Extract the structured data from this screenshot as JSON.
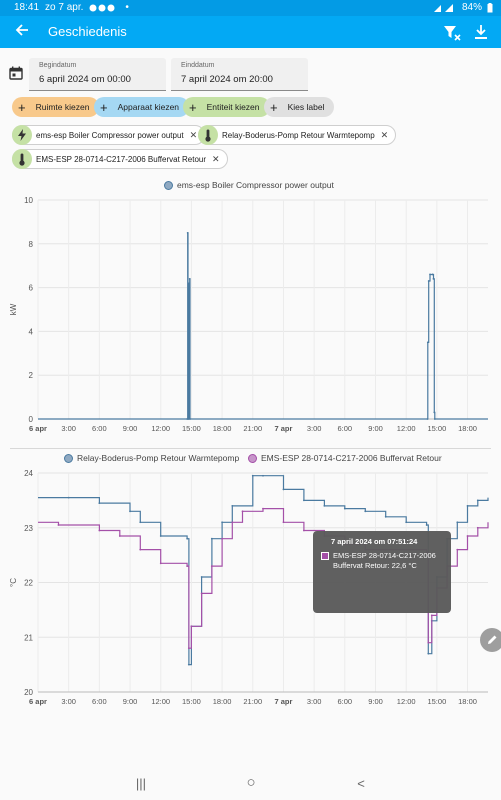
{
  "status_bar": {
    "time": "18:41",
    "date": "zo 7 apr.",
    "dot": "•",
    "battery": "84%"
  },
  "app_bar": {
    "title": "Geschiedenis",
    "icons": [
      "back-arrow-icon",
      "filter-remove-icon",
      "download-icon"
    ]
  },
  "date_range": {
    "start": {
      "label": "Begindatum",
      "value": "6 april 2024 om 00:00"
    },
    "end": {
      "label": "Einddatum",
      "value": "7 april 2024 om 20:00"
    }
  },
  "target_chips": [
    {
      "label": "Ruimte kiezen",
      "color": "#f8c98b"
    },
    {
      "label": "Apparaat kiezen",
      "color": "#a5d8f3"
    },
    {
      "label": "Entiteit kiezen",
      "color": "#c5e1a5"
    },
    {
      "label": "Kies label",
      "color": "#e0e0e0"
    }
  ],
  "entities": [
    {
      "label": "ems-esp Boiler Compressor power output",
      "icon": "lightning-bolt-icon"
    },
    {
      "label": "Relay-Boderus-Pomp Retour Warmtepomp",
      "icon": "thermometer-icon"
    },
    {
      "label": "EMS-ESP 28-0714-C217-2006 Buffervat Retour",
      "icon": "thermometer-icon"
    }
  ],
  "chart_data": [
    {
      "type": "line",
      "series": [
        {
          "name": "ems-esp Boiler Compressor power output",
          "color": "#4a7aa0",
          "x": [
            "2024-04-06T00:00",
            "2024-04-06T14:35",
            "2024-04-06T14:38",
            "2024-04-06T14:40",
            "2024-04-06T14:45",
            "2024-04-06T14:47",
            "2024-04-06T14:50",
            "2024-04-06T14:52",
            "2024-04-07T14:05",
            "2024-04-07T14:07",
            "2024-04-07T14:12",
            "2024-04-07T14:20",
            "2024-04-07T14:35",
            "2024-04-07T14:40",
            "2024-04-07T14:45",
            "2024-04-07T14:48",
            "2024-04-07T20:00"
          ],
          "values": [
            0,
            0,
            8.5,
            0,
            0,
            6.2,
            6.4,
            0,
            0,
            3.5,
            6.3,
            6.6,
            6.6,
            6.4,
            0.3,
            0,
            0
          ]
        }
      ],
      "ylabel": "kW",
      "ylim": [
        0,
        10
      ],
      "yticks": [
        0,
        2,
        4,
        6,
        8,
        10
      ],
      "xticks": [
        "6 apr",
        "3:00",
        "6:00",
        "9:00",
        "12:00",
        "15:00",
        "18:00",
        "21:00",
        "7 apr",
        "3:00",
        "6:00",
        "9:00",
        "12:00",
        "15:00",
        "18:00"
      ],
      "bold_xticks": [
        "6 apr",
        "7 apr"
      ],
      "grid": true,
      "legend": "top-center"
    },
    {
      "type": "line",
      "series": [
        {
          "name": "Relay-Boderus-Pomp Retour Warmtepomp",
          "color": "#4a7aa0",
          "x": [
            "2024-04-06T00:00",
            "2024-04-06T03:00",
            "2024-04-06T06:00",
            "2024-04-06T09:00",
            "2024-04-06T10:00",
            "2024-04-06T12:00",
            "2024-04-06T14:35",
            "2024-04-06T14:45",
            "2024-04-06T15:00",
            "2024-04-06T16:00",
            "2024-04-06T17:00",
            "2024-04-06T18:00",
            "2024-04-06T19:00",
            "2024-04-06T21:00",
            "2024-04-06T22:00",
            "2024-04-07T00:00",
            "2024-04-07T02:00",
            "2024-04-07T04:00",
            "2024-04-07T06:00",
            "2024-04-07T08:00",
            "2024-04-07T10:00",
            "2024-04-07T12:00",
            "2024-04-07T14:00",
            "2024-04-07T14:10",
            "2024-04-07T14:30",
            "2024-04-07T15:00",
            "2024-04-07T16:00",
            "2024-04-07T17:00",
            "2024-04-07T18:00",
            "2024-04-07T19:00",
            "2024-04-07T20:00"
          ],
          "values": [
            23.55,
            23.55,
            23.45,
            23.3,
            23.1,
            22.85,
            22.8,
            20.5,
            21.2,
            22.1,
            22.8,
            23.1,
            23.4,
            23.95,
            23.95,
            23.7,
            23.5,
            23.4,
            23.35,
            23.3,
            23.2,
            23.1,
            23.05,
            20.7,
            21.3,
            22.1,
            22.8,
            23.1,
            23.4,
            23.5,
            23.55
          ]
        },
        {
          "name": "EMS-ESP 28-0714-C217-2006 Buffervat Retour",
          "color": "#a450a8",
          "x": [
            "2024-04-06T00:00",
            "2024-04-06T02:00",
            "2024-04-06T06:00",
            "2024-04-06T08:00",
            "2024-04-06T10:00",
            "2024-04-06T12:00",
            "2024-04-06T14:35",
            "2024-04-06T14:45",
            "2024-04-06T15:00",
            "2024-04-06T16:00",
            "2024-04-06T17:00",
            "2024-04-06T18:00",
            "2024-04-06T19:00",
            "2024-04-06T20:00",
            "2024-04-06T22:00",
            "2024-04-07T00:00",
            "2024-04-07T02:00",
            "2024-04-07T04:00",
            "2024-04-07T06:00",
            "2024-04-07T08:00",
            "2024-04-07T10:00",
            "2024-04-07T12:00",
            "2024-04-07T14:00",
            "2024-04-07T14:10",
            "2024-04-07T14:30",
            "2024-04-07T15:00",
            "2024-04-07T16:00",
            "2024-04-07T17:00",
            "2024-04-07T18:00",
            "2024-04-07T19:00",
            "2024-04-07T20:00"
          ],
          "values": [
            23.1,
            23.05,
            22.95,
            22.85,
            22.6,
            22.35,
            22.3,
            20.8,
            21.2,
            21.8,
            22.3,
            22.8,
            23.1,
            23.3,
            23.35,
            23.1,
            22.95,
            22.85,
            22.7,
            22.6,
            22.6,
            22.6,
            22.55,
            20.9,
            21.4,
            21.9,
            22.3,
            22.6,
            22.85,
            23.0,
            23.1
          ]
        }
      ],
      "ylabel": "°C",
      "ylim": [
        20,
        24
      ],
      "yticks": [
        20,
        21,
        22,
        23,
        24
      ],
      "xticks": [
        "6 apr",
        "3:00",
        "6:00",
        "9:00",
        "12:00",
        "15:00",
        "18:00",
        "21:00",
        "7 apr",
        "3:00",
        "6:00",
        "9:00",
        "12:00",
        "15:00",
        "18:00"
      ],
      "bold_xticks": [
        "6 apr",
        "7 apr"
      ],
      "grid": true,
      "legend": "top-center",
      "tooltip": {
        "title": "7 april 2024 om 07:51:24",
        "text": "EMS-ESP 28-0714-C217-2006 Buffervat Retour: 22,6 °C"
      }
    }
  ],
  "nav_bar": {
    "recents": "|||",
    "home": "○",
    "back": "<"
  }
}
